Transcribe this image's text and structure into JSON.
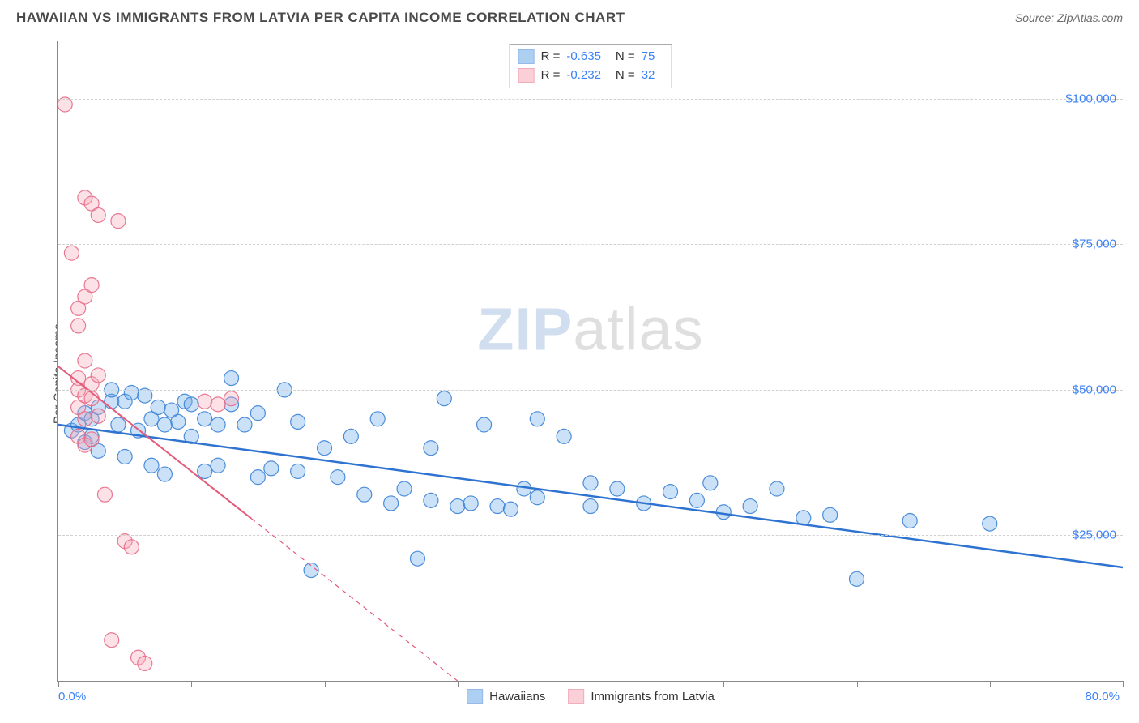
{
  "title": "HAWAIIAN VS IMMIGRANTS FROM LATVIA PER CAPITA INCOME CORRELATION CHART",
  "source": "Source: ZipAtlas.com",
  "watermark": {
    "part1": "ZIP",
    "part2": "atlas"
  },
  "ylabel": "Per Capita Income",
  "chart": {
    "type": "scatter",
    "background_color": "#ffffff",
    "grid_color": "#d0d0d0",
    "axis_color": "#888",
    "xlim": [
      0,
      80
    ],
    "ylim": [
      0,
      110000
    ],
    "xticks": [
      0,
      10,
      20,
      30,
      40,
      50,
      60,
      70,
      80
    ],
    "xticklabels": {
      "0": "0.0%",
      "80": "80.0%"
    },
    "yticks": [
      25000,
      50000,
      75000,
      100000
    ],
    "yticklabels": [
      "$25,000",
      "$50,000",
      "$75,000",
      "$100,000"
    ],
    "tick_label_color": "#3b82f6",
    "tick_label_fontsize": 15,
    "marker_radius": 9,
    "marker_fill_opacity": 0.35,
    "marker_stroke_opacity": 0.9,
    "series": [
      {
        "name": "Hawaiians",
        "color": "#6aa9e9",
        "stroke": "#3b82d6",
        "R": "-0.635",
        "N": "75",
        "trend": {
          "x1": 0,
          "y1": 44000,
          "x2": 80,
          "y2": 19500,
          "dash_after_x": null,
          "line_width": 2.5,
          "color": "#2f73d0"
        },
        "points": [
          [
            1,
            43000
          ],
          [
            1.5,
            44000
          ],
          [
            2,
            41000
          ],
          [
            2,
            46000
          ],
          [
            2.5,
            42000
          ],
          [
            2.5,
            45000
          ],
          [
            3,
            39500
          ],
          [
            3,
            47000
          ],
          [
            4,
            48000
          ],
          [
            4,
            50000
          ],
          [
            4.5,
            44000
          ],
          [
            5,
            48000
          ],
          [
            5,
            38500
          ],
          [
            5.5,
            49500
          ],
          [
            6,
            43000
          ],
          [
            6.5,
            49000
          ],
          [
            7,
            45000
          ],
          [
            7,
            37000
          ],
          [
            7.5,
            47000
          ],
          [
            8,
            44000
          ],
          [
            8,
            35500
          ],
          [
            8.5,
            46500
          ],
          [
            9,
            44500
          ],
          [
            9.5,
            48000
          ],
          [
            10,
            42000
          ],
          [
            10,
            47500
          ],
          [
            11,
            45000
          ],
          [
            11,
            36000
          ],
          [
            12,
            37000
          ],
          [
            12,
            44000
          ],
          [
            13,
            47500
          ],
          [
            13,
            52000
          ],
          [
            14,
            44000
          ],
          [
            15,
            46000
          ],
          [
            15,
            35000
          ],
          [
            16,
            36500
          ],
          [
            17,
            50000
          ],
          [
            18,
            44500
          ],
          [
            18,
            36000
          ],
          [
            19,
            19000
          ],
          [
            20,
            40000
          ],
          [
            21,
            35000
          ],
          [
            22,
            42000
          ],
          [
            23,
            32000
          ],
          [
            24,
            45000
          ],
          [
            25,
            30500
          ],
          [
            26,
            33000
          ],
          [
            27,
            21000
          ],
          [
            28,
            40000
          ],
          [
            28,
            31000
          ],
          [
            29,
            48500
          ],
          [
            30,
            30000
          ],
          [
            31,
            30500
          ],
          [
            32,
            44000
          ],
          [
            33,
            30000
          ],
          [
            34,
            29500
          ],
          [
            35,
            33000
          ],
          [
            36,
            45000
          ],
          [
            36,
            31500
          ],
          [
            38,
            42000
          ],
          [
            40,
            30000
          ],
          [
            40,
            34000
          ],
          [
            42,
            33000
          ],
          [
            44,
            30500
          ],
          [
            46,
            32500
          ],
          [
            48,
            31000
          ],
          [
            49,
            34000
          ],
          [
            50,
            29000
          ],
          [
            52,
            30000
          ],
          [
            54,
            33000
          ],
          [
            56,
            28000
          ],
          [
            58,
            28500
          ],
          [
            60,
            17500
          ],
          [
            64,
            27500
          ],
          [
            70,
            27000
          ]
        ]
      },
      {
        "name": "Immigrants from Latvia",
        "color": "#f6a8b8",
        "stroke": "#e86a87",
        "R": "-0.232",
        "N": "32",
        "trend": {
          "x1": 0,
          "y1": 54000,
          "x2": 30,
          "y2": 0,
          "dash_after_x": 14.5,
          "line_width": 2,
          "color": "#e35a7a"
        },
        "points": [
          [
            0.5,
            99000
          ],
          [
            1,
            73500
          ],
          [
            1.5,
            64000
          ],
          [
            1.5,
            61000
          ],
          [
            1.5,
            52000
          ],
          [
            1.5,
            50000
          ],
          [
            1.5,
            47000
          ],
          [
            1.5,
            42000
          ],
          [
            2,
            83000
          ],
          [
            2,
            66000
          ],
          [
            2,
            55000
          ],
          [
            2,
            49000
          ],
          [
            2,
            45000
          ],
          [
            2,
            40500
          ],
          [
            2.5,
            82000
          ],
          [
            2.5,
            68000
          ],
          [
            2.5,
            51000
          ],
          [
            2.5,
            48500
          ],
          [
            2.5,
            41500
          ],
          [
            3,
            80000
          ],
          [
            3,
            52500
          ],
          [
            3,
            45500
          ],
          [
            3.5,
            32000
          ],
          [
            4,
            7000
          ],
          [
            4.5,
            79000
          ],
          [
            5,
            24000
          ],
          [
            5.5,
            23000
          ],
          [
            6,
            4000
          ],
          [
            6.5,
            3000
          ],
          [
            11,
            48000
          ],
          [
            12,
            47500
          ],
          [
            13,
            48500
          ]
        ]
      }
    ]
  },
  "legend_top": {
    "border_color": "#aaa",
    "cols": [
      "R =",
      "N ="
    ]
  },
  "legend_bottom": {
    "items": [
      "Hawaiians",
      "Immigrants from Latvia"
    ]
  }
}
